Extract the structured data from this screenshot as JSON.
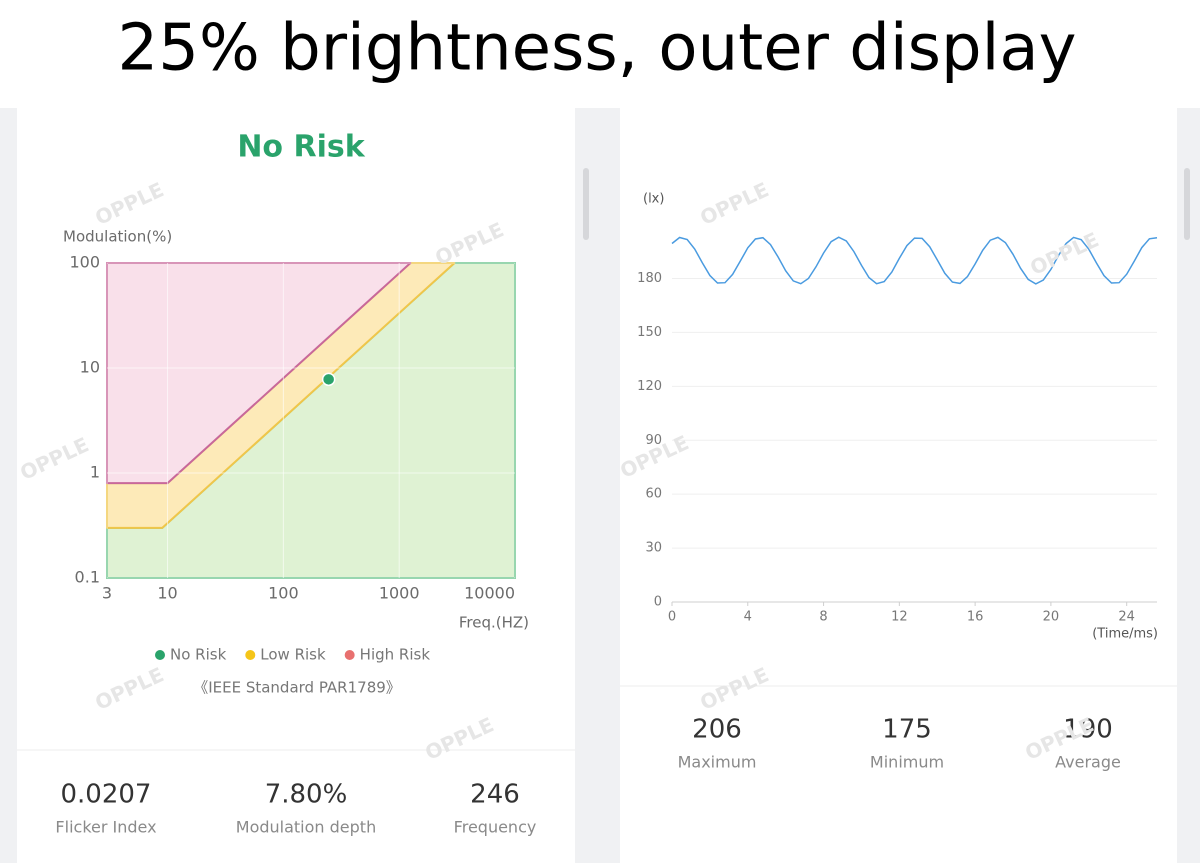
{
  "header": {
    "title": "25% brightness, outer display"
  },
  "watermark": "OPPLE",
  "chart_data": [
    {
      "type": "risk-area",
      "title": "No Risk",
      "title_color": "#2aa36b",
      "y_label": "Modulation(%)",
      "x_label": "Freq.(HZ)",
      "note": "《IEEE Standard PAR1789》",
      "log_x": true,
      "log_y": true,
      "grid": true,
      "legend": "bottom",
      "xlim": [
        3,
        10000
      ],
      "ylim": [
        0.1,
        100
      ],
      "xticks": [
        3,
        10,
        100,
        1000,
        10000
      ],
      "yticks": [
        0.1,
        1,
        10,
        100
      ],
      "series": [
        {
          "name": "No Risk",
          "color": "#2aa36b",
          "line": "#6cc48d",
          "fill": "#dff2d3",
          "x": [
            3,
            3,
            9,
            3000,
            10000,
            10000
          ],
          "values": [
            0.1,
            0.3,
            0.3,
            100,
            100,
            0.1
          ]
        },
        {
          "name": "Low Risk",
          "color": "#f5c518",
          "line": "#f0c64a",
          "fill": "#fdeab8",
          "x": [
            3,
            3,
            10,
            1250,
            3000,
            9
          ],
          "values": [
            0.3,
            0.8,
            0.8,
            100,
            100,
            0.3
          ]
        },
        {
          "name": "High Risk",
          "color": "#e8706f",
          "line": "#c8689a",
          "fill": "#f9e0ea",
          "x": [
            3,
            3,
            1250,
            10
          ],
          "values": [
            0.8,
            100,
            100,
            0.8
          ]
        }
      ],
      "point": {
        "x": 246,
        "y": 7.8,
        "color": "#2aa36b"
      }
    },
    {
      "type": "line",
      "y_label": "(lx)",
      "x_label": "(Time/ms)",
      "grid": true,
      "color": "#4a9be0",
      "xlim": [
        0,
        25.6
      ],
      "ylim": [
        0,
        207
      ],
      "xticks": [
        0,
        4,
        8,
        12,
        16,
        20,
        24
      ],
      "yticks": [
        0,
        30,
        60,
        90,
        120,
        150,
        180
      ],
      "x": [
        0,
        0.4,
        0.8,
        1.2,
        1.6,
        2.0,
        2.4,
        2.8,
        3.2,
        3.6,
        4.0,
        4.4,
        4.8,
        5.2,
        5.6,
        6.0,
        6.4,
        6.8,
        7.2,
        7.6,
        8.0,
        8.4,
        8.8,
        9.2,
        9.6,
        10.0,
        10.4,
        10.8,
        11.2,
        11.6,
        12.0,
        12.4,
        12.8,
        13.2,
        13.6,
        14.0,
        14.4,
        14.8,
        15.2,
        15.6,
        16.0,
        16.4,
        16.8,
        17.2,
        17.6,
        18.0,
        18.4,
        18.8,
        19.2,
        19.6,
        20.0,
        20.4,
        20.8,
        21.2,
        21.6,
        22.0,
        22.4,
        22.8,
        23.2,
        23.6,
        24.0,
        24.4,
        24.8,
        25.2,
        25.6
      ],
      "values": [
        199.5,
        202.8,
        201.7,
        196.4,
        188.8,
        181.7,
        177.5,
        177.7,
        182.3,
        189.6,
        197.1,
        202.0,
        202.7,
        198.9,
        192.0,
        184.3,
        178.7,
        177.1,
        180.0,
        186.5,
        194.2,
        200.5,
        203.0,
        200.9,
        195.0,
        187.3,
        180.5,
        177.1,
        178.3,
        183.6,
        191.2,
        198.3,
        202.5,
        202.3,
        197.7,
        190.4,
        182.9,
        178.0,
        177.3,
        181.1,
        188.1,
        195.7,
        201.3,
        202.9,
        200.0,
        193.5,
        185.7,
        179.5,
        177.0,
        179.1,
        185.1,
        192.8,
        199.5,
        202.9,
        201.6,
        196.3,
        188.7,
        181.6,
        177.5,
        177.7,
        182.4,
        189.7,
        197.2,
        202.1,
        202.7
      ]
    }
  ],
  "metrics": [
    [
      {
        "value": "0.0207",
        "label": "Flicker Index"
      },
      {
        "value": "7.80%",
        "label": "Modulation depth"
      },
      {
        "value": "246",
        "label": "Frequency"
      }
    ],
    [
      {
        "value": "206",
        "label": "Maximum"
      },
      {
        "value": "175",
        "label": "Minimum"
      },
      {
        "value": "190",
        "label": "Average"
      }
    ]
  ]
}
